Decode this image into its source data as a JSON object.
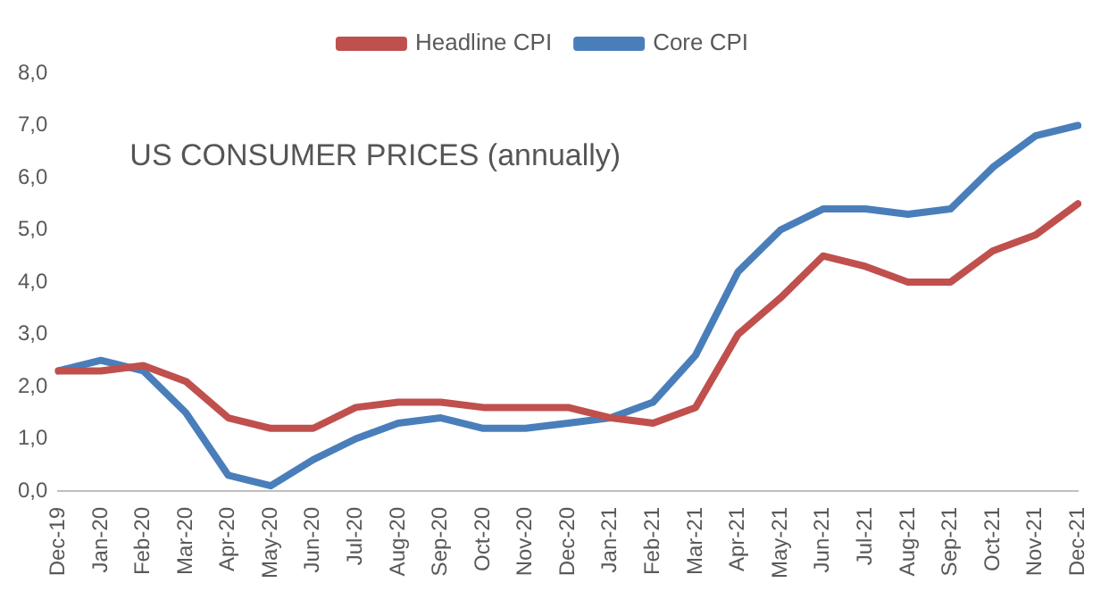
{
  "chart_data": {
    "type": "line",
    "title": "US CONSUMER PRICES (annually)",
    "categories": [
      "Dec-19",
      "Jan-20",
      "Feb-20",
      "Mar-20",
      "Apr-20",
      "May-20",
      "Jun-20",
      "Jul-20",
      "Aug-20",
      "Sep-20",
      "Oct-20",
      "Nov-20",
      "Dec-20",
      "Jan-21",
      "Feb-21",
      "Mar-21",
      "Apr-21",
      "May-21",
      "Jun-21",
      "Jul-21",
      "Aug-21",
      "Sep-21",
      "Oct-21",
      "Nov-21",
      "Dec-21"
    ],
    "series": [
      {
        "name": "Headline CPI",
        "color": "#c0504d",
        "values": [
          2.3,
          2.3,
          2.4,
          2.1,
          1.4,
          1.2,
          1.2,
          1.6,
          1.7,
          1.7,
          1.6,
          1.6,
          1.6,
          1.4,
          1.3,
          1.6,
          3.0,
          3.7,
          4.5,
          4.3,
          4.0,
          4.0,
          4.6,
          4.9,
          5.5
        ]
      },
      {
        "name": "Core CPI",
        "color": "#4a7ebb",
        "values": [
          2.3,
          2.5,
          2.3,
          1.5,
          0.3,
          0.1,
          0.6,
          1.0,
          1.3,
          1.4,
          1.2,
          1.2,
          1.3,
          1.4,
          1.7,
          2.6,
          4.2,
          5.0,
          5.4,
          5.4,
          5.3,
          5.4,
          6.2,
          6.8,
          7.0
        ]
      }
    ],
    "ylim": [
      0,
      8
    ],
    "yticks": [
      {
        "value": 0,
        "label": "0,0"
      },
      {
        "value": 1,
        "label": "1,0"
      },
      {
        "value": 2,
        "label": "2,0"
      },
      {
        "value": 3,
        "label": "3,0"
      },
      {
        "value": 4,
        "label": "4,0"
      },
      {
        "value": 5,
        "label": "5,0"
      },
      {
        "value": 6,
        "label": "6,0"
      },
      {
        "value": 7,
        "label": "7,0"
      },
      {
        "value": 8,
        "label": "8,0"
      }
    ],
    "grid": false,
    "legend": "top",
    "marker": "none",
    "line_style": "solid"
  }
}
